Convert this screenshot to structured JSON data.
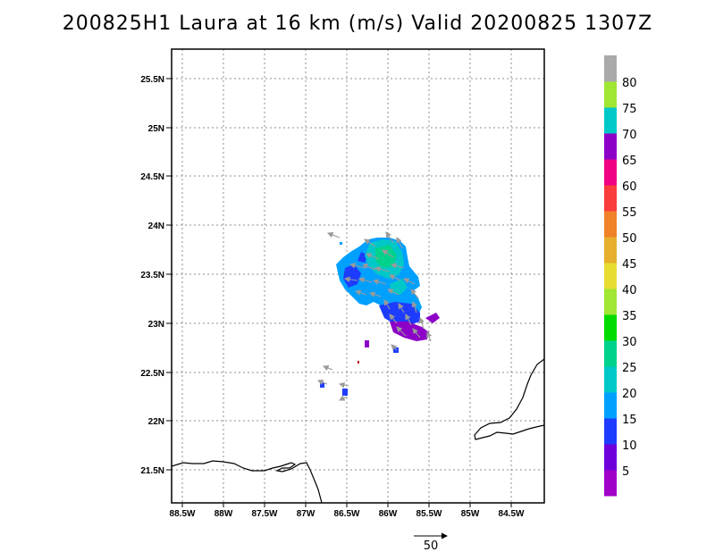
{
  "title": "200825H1 Laura at 16 km (m/s) Valid 20200825 1307Z",
  "lat_labels": [
    "25.5N",
    "25N",
    "24.5N",
    "24N",
    "23.5N",
    "23N",
    "22.5N",
    "22N",
    "21.5N"
  ],
  "lon_labels": [
    "88.5W",
    "88W",
    "87.5W",
    "87W",
    "86.5W",
    "86W",
    "85.5W",
    "85W",
    "84.5W"
  ],
  "colorbar": {
    "labels": [
      "5",
      "10",
      "15",
      "20",
      "25",
      "30",
      "35",
      "40",
      "45",
      "50",
      "55",
      "60",
      "65",
      "70",
      "75",
      "80"
    ],
    "colors": [
      "#a000c8",
      "#6e00dc",
      "#1e3cff",
      "#00a0ff",
      "#00c8c8",
      "#00d28c",
      "#00dc00",
      "#a0e632",
      "#e6dc32",
      "#e6af2d",
      "#f08228",
      "#fa3c3c",
      "#f00082",
      "#8c00c8",
      "#00c8c8",
      "#a0e632",
      "#aaaaaa"
    ]
  },
  "reference_vector_label": "50"
}
